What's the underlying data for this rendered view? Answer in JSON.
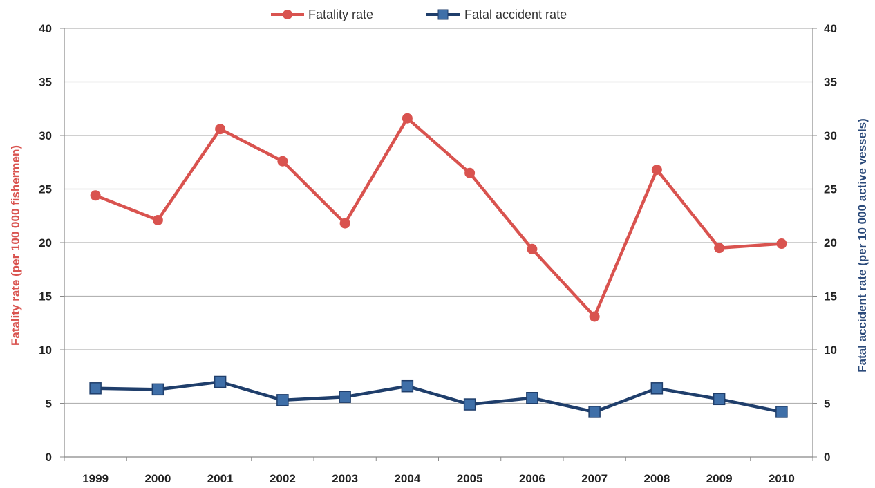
{
  "chart_data": {
    "type": "line",
    "categories": [
      "1999",
      "2000",
      "2001",
      "2002",
      "2003",
      "2004",
      "2005",
      "2006",
      "2007",
      "2008",
      "2009",
      "2010"
    ],
    "series": [
      {
        "name": "Fatality rate",
        "axis": "left",
        "color": "#d9534f",
        "marker": "circle",
        "values": [
          24.4,
          22.1,
          30.6,
          27.6,
          21.8,
          31.6,
          26.5,
          19.4,
          13.1,
          26.8,
          19.5,
          19.9
        ]
      },
      {
        "name": "Fatal accident rate",
        "axis": "right",
        "color": "#1f3e6b",
        "marker_color": "#3f6fa8",
        "marker": "square",
        "values": [
          6.4,
          6.3,
          7.0,
          5.3,
          5.6,
          6.6,
          4.9,
          5.5,
          4.2,
          6.4,
          5.4,
          4.2
        ]
      }
    ],
    "left_axis": {
      "label": "Fatality rate (per 100 000 fishermen)",
      "color": "#d9534f",
      "ylim": [
        0,
        40
      ],
      "ticks": [
        "0",
        "5",
        "10",
        "15",
        "20",
        "25",
        "30",
        "35",
        "40"
      ]
    },
    "right_axis": {
      "label": "Fatal accident rate (per 10 000 active vessels)",
      "color": "#2b4a7a",
      "ylim": [
        0,
        40
      ],
      "ticks": [
        "0",
        "5",
        "10",
        "15",
        "20",
        "25",
        "30",
        "35",
        "40"
      ]
    },
    "grid": true,
    "legend_position": "top-center"
  }
}
